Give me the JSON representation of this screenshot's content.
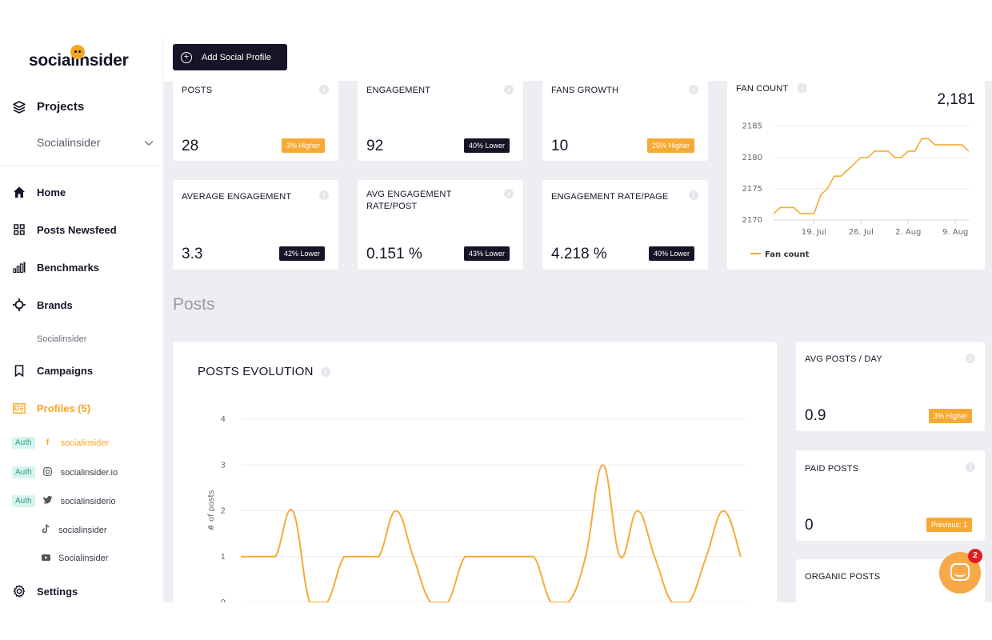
{
  "brand": {
    "name": "socialinsider",
    "accent": "#f5a623",
    "dark": "#151527"
  },
  "sidebar": {
    "projects_label": "Projects",
    "project_selected": "Socialinsider",
    "nav": [
      {
        "label": "Home",
        "icon": "home-icon"
      },
      {
        "label": "Posts Newsfeed",
        "icon": "grid-icon"
      },
      {
        "label": "Benchmarks",
        "icon": "bar-chart-icon"
      },
      {
        "label": "Brands",
        "icon": "crosshair-icon"
      }
    ],
    "brands_sub": "Socialinsider",
    "campaigns_label": "Campaigns",
    "profiles_label": "Profiles (5)",
    "profiles": [
      {
        "auth": "Auth",
        "network": "facebook-icon",
        "glyph": "f",
        "name": "socialinsider",
        "active": true
      },
      {
        "auth": "Auth",
        "network": "instagram-icon",
        "glyph": "◎",
        "name": "socialinsider.io",
        "active": false
      },
      {
        "auth": "Auth",
        "network": "twitter-icon",
        "glyph": "🐦",
        "name": "socialinsiderio",
        "active": false
      },
      {
        "auth": "",
        "network": "tiktok-icon",
        "glyph": "♪",
        "name": "socialinsider",
        "active": false
      },
      {
        "auth": "",
        "network": "youtube-icon",
        "glyph": "▶",
        "name": "Socialinsider",
        "active": false
      }
    ],
    "settings_label": "Settings"
  },
  "topbar": {
    "add_profile_label": "Add Social Profile"
  },
  "kpis": [
    {
      "title": "POSTS",
      "value": "28",
      "badge": "3% Higher",
      "tone": "orange"
    },
    {
      "title": "ENGAGEMENT",
      "value": "92",
      "badge": "40% Lower",
      "tone": "dark"
    },
    {
      "title": "FANS GROWTH",
      "value": "10",
      "badge": "25% Higher",
      "tone": "orange"
    },
    {
      "title": "AVERAGE ENGAGEMENT",
      "value": "3.3",
      "badge": "42% Lower",
      "tone": "dark"
    },
    {
      "title": "AVG ENGAGEMENT RATE/POST",
      "value": "0.151 %",
      "badge": "43% Lower",
      "tone": "dark"
    },
    {
      "title": "ENGAGEMENT RATE/PAGE",
      "value": "4.218 %",
      "badge": "40% Lower",
      "tone": "dark"
    }
  ],
  "fan_count": {
    "title": "FAN COUNT",
    "value": "2,181",
    "legend": "Fan count",
    "y_ticks": [
      "2185",
      "2180",
      "2175",
      "2170"
    ],
    "x_ticks": [
      "19. Jul",
      "26. Jul",
      "2. Aug",
      "9. Aug"
    ]
  },
  "posts_section": {
    "heading": "Posts"
  },
  "posts_evolution": {
    "title": "POSTS EVOLUTION",
    "ylabel": "# of posts",
    "y_ticks": [
      "4",
      "3",
      "2",
      "1",
      "0"
    ]
  },
  "side_kpis": [
    {
      "title": "AVG POSTS / DAY",
      "value": "0.9",
      "badge": "3% Higher",
      "tone": "orange"
    },
    {
      "title": "PAID POSTS",
      "value": "0",
      "badge": "Previous: 1",
      "tone": "orange"
    },
    {
      "title": "ORGANIC POSTS",
      "value": "",
      "badge": "",
      "tone": ""
    }
  ],
  "chat": {
    "unread": "2"
  },
  "chart_data": [
    {
      "type": "line",
      "title": "FAN COUNT",
      "xlabel": "",
      "ylabel": "",
      "x": [
        "2022-07-13",
        "2022-07-14",
        "2022-07-15",
        "2022-07-16",
        "2022-07-17",
        "2022-07-18",
        "2022-07-19",
        "2022-07-20",
        "2022-07-21",
        "2022-07-22",
        "2022-07-23",
        "2022-07-24",
        "2022-07-25",
        "2022-07-26",
        "2022-07-27",
        "2022-07-28",
        "2022-07-29",
        "2022-07-30",
        "2022-07-31",
        "2022-08-01",
        "2022-08-02",
        "2022-08-03",
        "2022-08-04",
        "2022-08-05",
        "2022-08-06",
        "2022-08-07",
        "2022-08-08",
        "2022-08-09",
        "2022-08-10",
        "2022-08-11"
      ],
      "series": [
        {
          "name": "Fan count",
          "values": [
            2171,
            2172,
            2172,
            2172,
            2171,
            2171,
            2171,
            2174,
            2175,
            2177,
            2177,
            2178,
            2179,
            2180,
            2180,
            2181,
            2181,
            2181,
            2180,
            2180,
            2181,
            2181,
            2183,
            2183,
            2182,
            2182,
            2182,
            2182,
            2182,
            2181
          ]
        }
      ],
      "ylim": [
        2170,
        2187
      ],
      "x_ticks": [
        "19. Jul",
        "26. Jul",
        "2. Aug",
        "9. Aug"
      ],
      "legend": "bottom-left",
      "grid": true
    },
    {
      "type": "line",
      "title": "POSTS EVOLUTION",
      "xlabel": "",
      "ylabel": "# of posts",
      "x": [
        1,
        2,
        3,
        4,
        5,
        6,
        7,
        8,
        9,
        10,
        11,
        12,
        13,
        14,
        15,
        16,
        17,
        18,
        19,
        20,
        21,
        22,
        23,
        24,
        25,
        26,
        27,
        28,
        29,
        30
      ],
      "series": [
        {
          "name": "",
          "values": [
            1,
            1,
            1,
            2,
            0,
            0,
            1,
            1,
            1,
            2,
            1,
            0,
            0,
            1,
            1,
            1,
            1,
            1,
            0,
            0,
            1,
            3,
            1,
            2,
            1,
            0,
            0,
            1,
            2,
            1
          ]
        }
      ],
      "ylim": [
        0,
        4
      ],
      "grid": true,
      "smooth": true
    }
  ]
}
